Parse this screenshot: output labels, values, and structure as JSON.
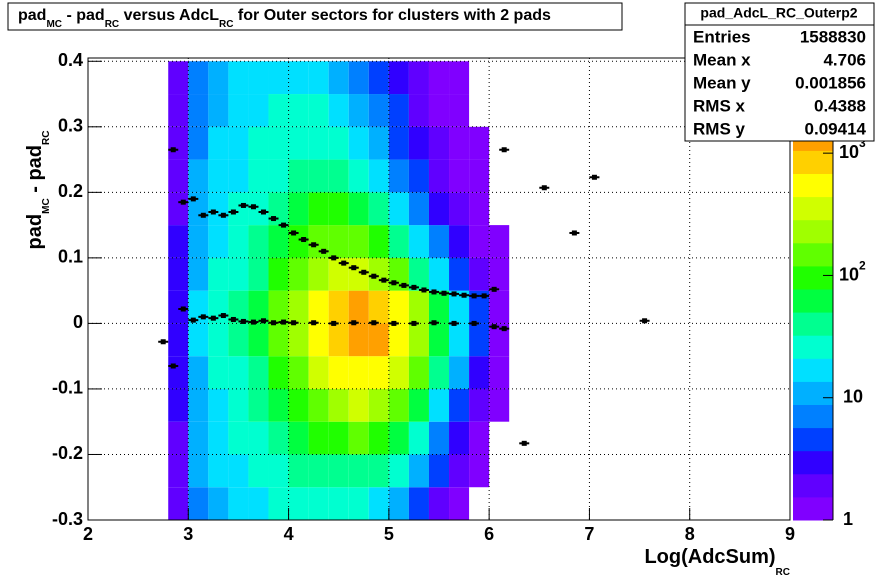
{
  "chart_data": {
    "type": "heatmap",
    "title": [
      "pad",
      "MC",
      " - pad",
      "RC",
      " versus AdcL",
      "RC",
      " for Outer sectors for clusters with 2 pads"
    ],
    "x_label": [
      "Log(AdcSum)",
      "RC"
    ],
    "y_label": [
      "pad",
      "MC",
      " - pad",
      "RC"
    ],
    "xlim": [
      2,
      9
    ],
    "ylim": [
      -0.3,
      0.405
    ],
    "xticks": [
      2,
      3,
      4,
      5,
      6,
      7,
      8,
      9
    ],
    "yticks": [
      -0.3,
      -0.2,
      -0.1,
      0,
      0.1,
      0.2,
      0.3,
      0.4
    ],
    "grid": true,
    "zlim": [
      1,
      6000
    ],
    "zlog": true,
    "zticks": [
      1,
      10,
      {
        "value": 100,
        "label": "10",
        "exponent": "2"
      },
      {
        "value": 1000,
        "label": "10",
        "exponent": "3"
      }
    ],
    "palette": [
      "#8000ff",
      "#6000ff",
      "#3000ff",
      "#0040ff",
      "#0080ff",
      "#00b0ff",
      "#00e0ff",
      "#00ffd0",
      "#00ff90",
      "#00ff40",
      "#20ff00",
      "#60ff00",
      "#a0ff00",
      "#d0ff00",
      "#ffff00",
      "#ffd000",
      "#ffa000",
      "#ff7000",
      "#ff4000",
      "#ff0000"
    ],
    "x_edges": [
      2.8,
      3.0,
      3.2,
      3.4,
      3.6,
      3.8,
      4.0,
      4.2,
      4.4,
      4.6,
      4.8,
      5.0,
      5.2,
      5.4,
      5.6,
      5.8,
      6.0,
      6.2
    ],
    "y_edges": [
      -0.3,
      -0.25,
      -0.2,
      -0.15,
      -0.1,
      -0.05,
      0,
      0.05,
      0.1,
      0.15,
      0.2,
      0.25,
      0.3,
      0.35,
      0.4
    ],
    "z": [
      [
        2,
        8,
        13,
        17,
        20,
        22,
        26,
        28,
        28,
        25,
        18,
        10,
        5,
        2,
        1,
        0,
        0
      ],
      [
        2,
        9,
        15,
        20,
        25,
        30,
        40,
        45,
        50,
        50,
        40,
        25,
        10,
        4,
        2,
        1,
        0
      ],
      [
        2,
        10,
        17,
        22,
        30,
        40,
        60,
        80,
        110,
        120,
        100,
        60,
        25,
        8,
        3,
        1,
        0
      ],
      [
        3,
        11,
        19,
        26,
        38,
        55,
        90,
        150,
        250,
        300,
        250,
        150,
        60,
        18,
        5,
        2,
        1
      ],
      [
        3,
        12,
        22,
        32,
        50,
        80,
        150,
        300,
        500,
        600,
        500,
        300,
        120,
        35,
        10,
        3,
        1
      ],
      [
        3,
        14,
        26,
        40,
        70,
        120,
        250,
        500,
        900,
        1200,
        1100,
        600,
        250,
        70,
        18,
        5,
        1
      ],
      [
        3,
        14,
        26,
        40,
        70,
        120,
        250,
        500,
        900,
        1100,
        900,
        500,
        200,
        60,
        15,
        4,
        1
      ],
      [
        3,
        12,
        22,
        32,
        50,
        80,
        150,
        280,
        400,
        400,
        280,
        140,
        50,
        15,
        5,
        2,
        1
      ],
      [
        3,
        11,
        19,
        26,
        38,
        55,
        90,
        150,
        180,
        150,
        90,
        40,
        15,
        6,
        3,
        1,
        1
      ],
      [
        2,
        10,
        17,
        22,
        30,
        40,
        60,
        80,
        80,
        60,
        35,
        15,
        6,
        3,
        2,
        1,
        0
      ],
      [
        2,
        9,
        15,
        20,
        25,
        32,
        40,
        45,
        40,
        28,
        16,
        8,
        4,
        2,
        1,
        1,
        0
      ],
      [
        2,
        8,
        14,
        18,
        22,
        26,
        30,
        30,
        24,
        15,
        9,
        5,
        3,
        2,
        1,
        1,
        0
      ],
      [
        2,
        7,
        13,
        17,
        20,
        22,
        24,
        22,
        16,
        10,
        6,
        4,
        2,
        1,
        1,
        0,
        0
      ],
      [
        2,
        6,
        12,
        15,
        18,
        20,
        20,
        18,
        12,
        8,
        5,
        3,
        2,
        1,
        1,
        0,
        0
      ]
    ],
    "profiles": [
      {
        "color": "#000000",
        "x": [
          2.85,
          2.95,
          3.05,
          3.15,
          3.25,
          3.35,
          3.45,
          3.55,
          3.65,
          3.75,
          3.85,
          3.95,
          4.05,
          4.15,
          4.25,
          4.35,
          4.45,
          4.55,
          4.65,
          4.75,
          4.85,
          4.95,
          5.05,
          5.15,
          5.25,
          5.35,
          5.45,
          5.55,
          5.65,
          5.75,
          5.85,
          5.95,
          6.05,
          6.15,
          6.55,
          6.85,
          7.05
        ],
        "values": [
          0.265,
          0.185,
          0.19,
          0.165,
          0.17,
          0.165,
          0.17,
          0.18,
          0.178,
          0.17,
          0.16,
          0.15,
          0.138,
          0.128,
          0.12,
          0.11,
          0.1,
          0.092,
          0.085,
          0.078,
          0.072,
          0.066,
          0.062,
          0.058,
          0.055,
          0.051,
          0.048,
          0.046,
          0.045,
          0.043,
          0.042,
          0.042,
          0.052,
          0.265,
          0.207,
          0.138,
          0.223
        ]
      },
      {
        "color": "#000000",
        "x": [
          2.75,
          2.85,
          2.95,
          3.05,
          3.15,
          3.25,
          3.35,
          3.45,
          3.55,
          3.65,
          3.75,
          3.85,
          3.95,
          4.05,
          4.25,
          4.45,
          4.65,
          4.85,
          5.05,
          5.25,
          5.45,
          5.65,
          5.85,
          6.05,
          6.15,
          6.35,
          7.55
        ],
        "values": [
          -0.028,
          -0.065,
          0.022,
          0.005,
          0.01,
          0.008,
          0.012,
          0.006,
          0.003,
          0.002,
          0.004,
          0.001,
          0.002,
          0.001,
          0.001,
          0,
          0.001,
          0.001,
          0,
          0,
          0.001,
          0,
          0,
          -0.005,
          -0.008,
          -0.183,
          0.004
        ]
      }
    ],
    "stats": {
      "name": "pad_AdcL_RC_Outerp2",
      "rows": [
        [
          "Entries",
          1588830
        ],
        [
          "Mean x",
          4.706
        ],
        [
          "Mean y",
          0.001856
        ],
        [
          "RMS x",
          0.4388
        ],
        [
          "RMS y",
          0.09414
        ]
      ]
    }
  }
}
